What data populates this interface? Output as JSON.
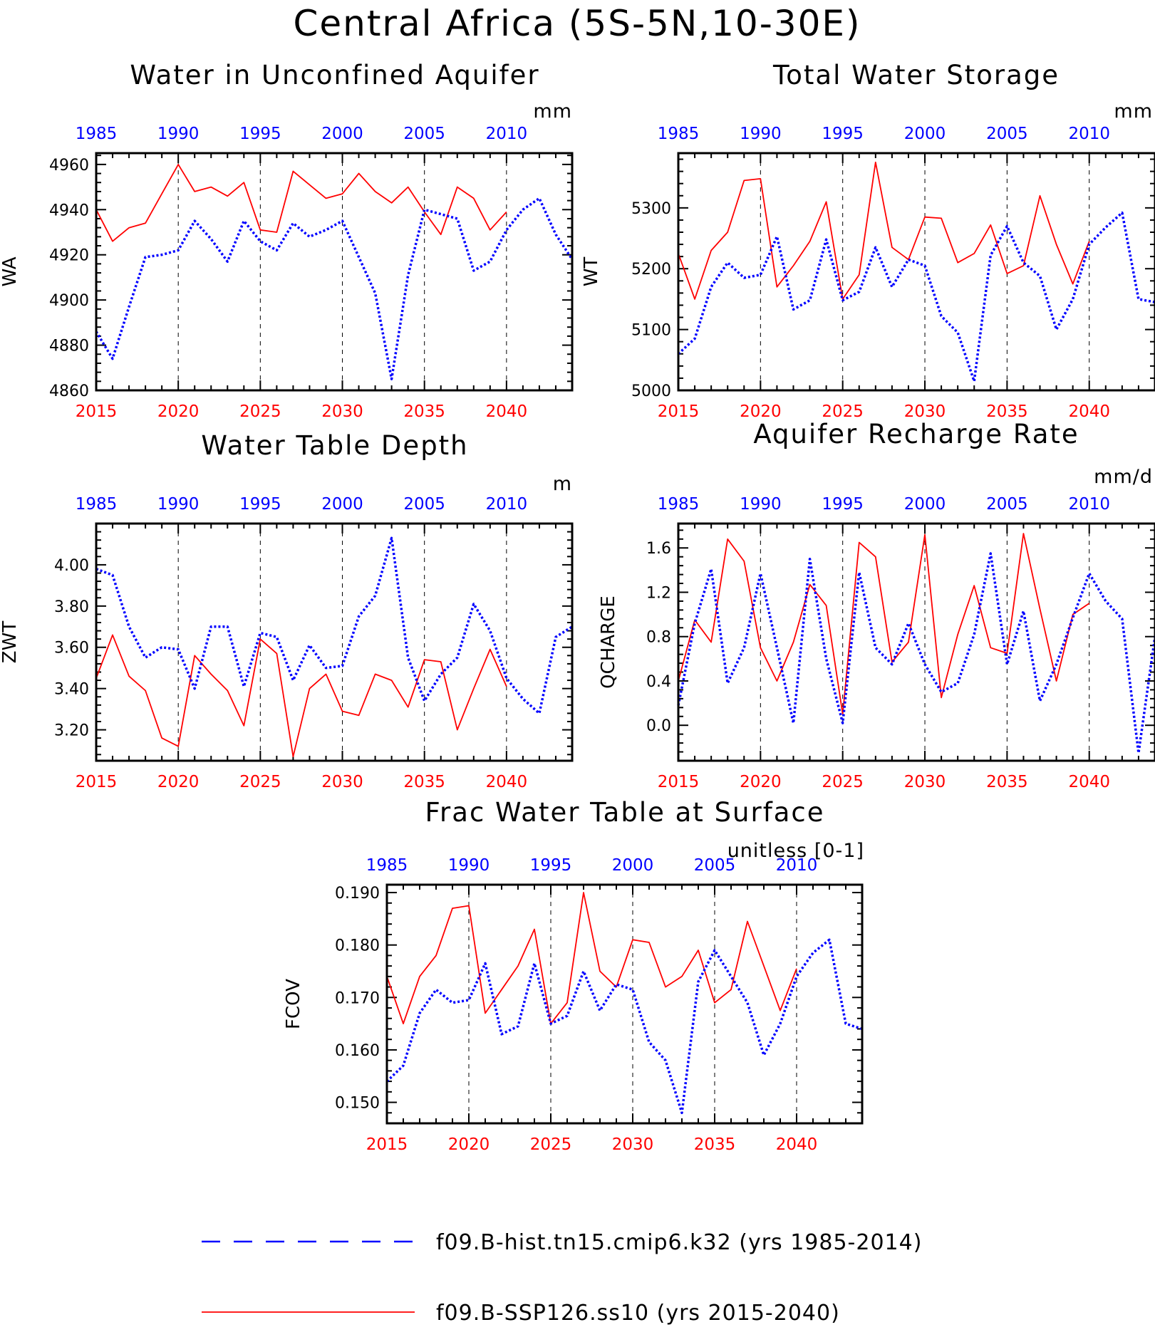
{
  "figure": {
    "title": "Central Africa (5S-5N,10-30E)"
  },
  "colors": {
    "hist": "#0000ff",
    "ssp": "#ff0000",
    "axis": "#000000",
    "grid": "#000000"
  },
  "legend": [
    {
      "series": "hist",
      "label": "f09.B-hist.tn15.cmip6.k32 (yrs 1985-2014)",
      "style": "dashed"
    },
    {
      "series": "ssp",
      "label": "f09.B-SSP126.ss10 (yrs 2015-2040)",
      "style": "solid"
    }
  ],
  "chart_data": [
    {
      "id": "wa",
      "type": "line",
      "title": "Water in Unconfined Aquifer",
      "units": "mm",
      "ylabel": "WA",
      "ylim": [
        4860,
        4965
      ],
      "yticks": [
        4860,
        4880,
        4900,
        4920,
        4940,
        4960
      ],
      "ytick_labels": [
        "4860",
        "4880",
        "4900",
        "4920",
        "4940",
        "4960"
      ],
      "xlim_bottom": [
        2015,
        2044
      ],
      "bottom_ticks": [
        2015,
        2020,
        2025,
        2030,
        2035,
        2040
      ],
      "top_offset": -30,
      "top_ticks": [
        1985,
        1990,
        1995,
        2000,
        2005,
        2010
      ],
      "grid_x": [
        2020,
        2025,
        2030,
        2035,
        2040
      ],
      "series": [
        {
          "key": "ssp",
          "x": [
            2015,
            2016,
            2017,
            2018,
            2019,
            2020,
            2021,
            2022,
            2023,
            2024,
            2025,
            2026,
            2027,
            2028,
            2029,
            2030,
            2031,
            2032,
            2033,
            2034,
            2035,
            2036,
            2037,
            2038,
            2039,
            2040
          ],
          "values": [
            4940,
            4926,
            4932,
            4934,
            4947,
            4960,
            4948,
            4950,
            4946,
            4952,
            4931,
            4930,
            4957,
            4951,
            4945,
            4947,
            4956,
            4948,
            4943,
            4950,
            4939,
            4929,
            4950,
            4945,
            4931,
            4939
          ]
        },
        {
          "key": "hist",
          "x": [
            1985,
            1986,
            1987,
            1988,
            1989,
            1990,
            1991,
            1992,
            1993,
            1994,
            1995,
            1996,
            1997,
            1998,
            1999,
            2000,
            2001,
            2002,
            2003,
            2004,
            2005,
            2006,
            2007,
            2008,
            2009,
            2010,
            2011,
            2012,
            2013,
            2014
          ],
          "values": [
            4886,
            4874,
            4897,
            4919,
            4920,
            4922,
            4935,
            4927,
            4917,
            4935,
            4926,
            4922,
            4934,
            4928,
            4931,
            4935,
            4919,
            4903,
            4865,
            4911,
            4940,
            4938,
            4936,
            4913,
            4917,
            4931,
            4940,
            4945,
            4929,
            4918
          ]
        }
      ]
    },
    {
      "id": "wt",
      "type": "line",
      "title": "Total Water Storage",
      "units": "mm",
      "ylabel": "WT",
      "ylim": [
        5000,
        5390
      ],
      "yticks": [
        5000,
        5100,
        5200,
        5300
      ],
      "ytick_labels": [
        "5000",
        "5100",
        "5200",
        "5300"
      ],
      "xlim_bottom": [
        2015,
        2044
      ],
      "bottom_ticks": [
        2015,
        2020,
        2025,
        2030,
        2035,
        2040
      ],
      "top_offset": -30,
      "top_ticks": [
        1985,
        1990,
        1995,
        2000,
        2005,
        2010
      ],
      "grid_x": [
        2020,
        2025,
        2030,
        2035,
        2040
      ],
      "series": [
        {
          "key": "ssp",
          "x": [
            2015,
            2016,
            2017,
            2018,
            2019,
            2020,
            2021,
            2022,
            2023,
            2024,
            2025,
            2026,
            2027,
            2028,
            2029,
            2030,
            2031,
            2032,
            2033,
            2034,
            2035,
            2036,
            2037,
            2038,
            2039,
            2040
          ],
          "values": [
            5225,
            5150,
            5230,
            5260,
            5345,
            5348,
            5170,
            5205,
            5245,
            5310,
            5150,
            5190,
            5375,
            5235,
            5215,
            5285,
            5283,
            5210,
            5225,
            5272,
            5192,
            5205,
            5320,
            5240,
            5175,
            5245
          ]
        },
        {
          "key": "hist",
          "x": [
            1985,
            1986,
            1987,
            1988,
            1989,
            1990,
            1991,
            1992,
            1993,
            1994,
            1995,
            1996,
            1997,
            1998,
            1999,
            2000,
            2001,
            2002,
            2003,
            2004,
            2005,
            2006,
            2007,
            2008,
            2009,
            2010,
            2011,
            2012,
            2013,
            2014
          ],
          "values": [
            5060,
            5085,
            5170,
            5210,
            5185,
            5190,
            5253,
            5133,
            5148,
            5248,
            5148,
            5162,
            5235,
            5170,
            5215,
            5205,
            5122,
            5095,
            5015,
            5222,
            5270,
            5210,
            5188,
            5100,
            5150,
            5240,
            5268,
            5292,
            5150,
            5145
          ]
        }
      ]
    },
    {
      "id": "zwt",
      "type": "line",
      "title": "Water Table Depth",
      "units": "m",
      "ylabel": "ZWT",
      "ylim": [
        3.05,
        4.2
      ],
      "yticks": [
        3.2,
        3.4,
        3.6,
        3.8,
        4.0
      ],
      "ytick_labels": [
        "3.20",
        "3.40",
        "3.60",
        "3.80",
        "4.00"
      ],
      "xlim_bottom": [
        2015,
        2044
      ],
      "bottom_ticks": [
        2015,
        2020,
        2025,
        2030,
        2035,
        2040
      ],
      "top_offset": -30,
      "top_ticks": [
        1985,
        1990,
        1995,
        2000,
        2005,
        2010
      ],
      "grid_x": [
        2020,
        2025,
        2030,
        2035,
        2040
      ],
      "series": [
        {
          "key": "ssp",
          "x": [
            2015,
            2016,
            2017,
            2018,
            2019,
            2020,
            2021,
            2022,
            2023,
            2024,
            2025,
            2026,
            2027,
            2028,
            2029,
            2030,
            2031,
            2032,
            2033,
            2034,
            2035,
            2036,
            2037,
            2038,
            2039,
            2040
          ],
          "values": [
            3.45,
            3.66,
            3.46,
            3.39,
            3.16,
            3.12,
            3.56,
            3.47,
            3.39,
            3.22,
            3.64,
            3.57,
            3.07,
            3.4,
            3.47,
            3.29,
            3.27,
            3.47,
            3.44,
            3.31,
            3.54,
            3.53,
            3.2,
            3.4,
            3.59,
            3.41
          ]
        },
        {
          "key": "hist",
          "x": [
            1985,
            1986,
            1987,
            1988,
            1989,
            1990,
            1991,
            1992,
            1993,
            1994,
            1995,
            1996,
            1997,
            1998,
            1999,
            2000,
            2001,
            2002,
            2003,
            2004,
            2005,
            2006,
            2007,
            2008,
            2009,
            2010,
            2011,
            2012,
            2013,
            2014
          ],
          "values": [
            3.98,
            3.95,
            3.7,
            3.55,
            3.6,
            3.59,
            3.4,
            3.7,
            3.7,
            3.41,
            3.67,
            3.65,
            3.44,
            3.61,
            3.5,
            3.51,
            3.75,
            3.85,
            4.13,
            3.55,
            3.34,
            3.47,
            3.55,
            3.81,
            3.68,
            3.45,
            3.35,
            3.28,
            3.65,
            3.7
          ]
        }
      ]
    },
    {
      "id": "qcharge",
      "type": "line",
      "title": "Aquifer Recharge Rate",
      "units": "mm/d",
      "ylabel": "QCHARGE",
      "ylim": [
        -0.32,
        1.82
      ],
      "yticks": [
        0.0,
        0.4,
        0.8,
        1.2,
        1.6
      ],
      "ytick_labels": [
        "0.0",
        "0.4",
        "0.8",
        "1.2",
        "1.6"
      ],
      "xlim_bottom": [
        2015,
        2044
      ],
      "bottom_ticks": [
        2015,
        2020,
        2025,
        2030,
        2035,
        2040
      ],
      "top_offset": -30,
      "top_ticks": [
        1985,
        1990,
        1995,
        2000,
        2005,
        2010
      ],
      "grid_x": [
        2020,
        2025,
        2030,
        2035,
        2040
      ],
      "series": [
        {
          "key": "ssp",
          "x": [
            2015,
            2016,
            2017,
            2018,
            2019,
            2020,
            2021,
            2022,
            2023,
            2024,
            2025,
            2026,
            2027,
            2028,
            2029,
            2030,
            2031,
            2032,
            2033,
            2034,
            2035,
            2036,
            2037,
            2038,
            2039,
            2040
          ],
          "values": [
            0.4,
            0.95,
            0.75,
            1.68,
            1.48,
            0.7,
            0.4,
            0.75,
            1.27,
            1.08,
            0.1,
            1.65,
            1.52,
            0.57,
            0.75,
            1.72,
            0.25,
            0.82,
            1.26,
            0.7,
            0.65,
            1.73,
            1.05,
            0.4,
            1.0,
            1.1
          ]
        },
        {
          "key": "hist",
          "x": [
            1985,
            1986,
            1987,
            1988,
            1989,
            1990,
            1991,
            1992,
            1993,
            1994,
            1995,
            1996,
            1997,
            1998,
            1999,
            2000,
            2001,
            2002,
            2003,
            2004,
            2005,
            2006,
            2007,
            2008,
            2009,
            2010,
            2011,
            2012,
            2013,
            2014
          ],
          "values": [
            0.18,
            0.92,
            1.41,
            0.38,
            0.7,
            1.37,
            0.7,
            0.02,
            1.5,
            0.6,
            0.02,
            1.38,
            0.7,
            0.55,
            0.92,
            0.55,
            0.3,
            0.38,
            0.82,
            1.55,
            0.55,
            1.03,
            0.22,
            0.55,
            0.97,
            1.37,
            1.12,
            0.96,
            -0.25,
            0.8
          ]
        }
      ]
    },
    {
      "id": "fcov",
      "type": "line",
      "title": "Frac Water Table at Surface",
      "units": "unitless [0-1]",
      "ylabel": "FCOV",
      "ylim": [
        0.146,
        0.1915
      ],
      "yticks": [
        0.15,
        0.16,
        0.17,
        0.18,
        0.19
      ],
      "ytick_labels": [
        "0.150",
        "0.160",
        "0.170",
        "0.180",
        "0.190"
      ],
      "xlim_bottom": [
        2015,
        2044
      ],
      "bottom_ticks": [
        2015,
        2020,
        2025,
        2030,
        2035,
        2040
      ],
      "top_offset": -30,
      "top_ticks": [
        1985,
        1990,
        1995,
        2000,
        2005,
        2010
      ],
      "grid_x": [
        2020,
        2025,
        2030,
        2035,
        2040
      ],
      "series": [
        {
          "key": "ssp",
          "x": [
            2015,
            2016,
            2017,
            2018,
            2019,
            2020,
            2021,
            2022,
            2023,
            2024,
            2025,
            2026,
            2027,
            2028,
            2029,
            2030,
            2031,
            2032,
            2033,
            2034,
            2035,
            2036,
            2037,
            2038,
            2039,
            2040
          ],
          "values": [
            0.174,
            0.165,
            0.174,
            0.178,
            0.187,
            0.1875,
            0.167,
            0.1715,
            0.176,
            0.183,
            0.165,
            0.169,
            0.19,
            0.175,
            0.172,
            0.181,
            0.1805,
            0.172,
            0.174,
            0.179,
            0.169,
            0.1715,
            0.1845,
            0.176,
            0.1675,
            0.1755
          ]
        },
        {
          "key": "hist",
          "x": [
            1985,
            1986,
            1987,
            1988,
            1989,
            1990,
            1991,
            1992,
            1993,
            1994,
            1995,
            1996,
            1997,
            1998,
            1999,
            2000,
            2001,
            2002,
            2003,
            2004,
            2005,
            2006,
            2007,
            2008,
            2009,
            2010,
            2011,
            2012,
            2013,
            2014
          ],
          "values": [
            0.154,
            0.157,
            0.167,
            0.1715,
            0.169,
            0.1695,
            0.1765,
            0.163,
            0.1645,
            0.1765,
            0.165,
            0.1665,
            0.175,
            0.1675,
            0.1725,
            0.1715,
            0.1615,
            0.158,
            0.148,
            0.173,
            0.179,
            0.174,
            0.169,
            0.159,
            0.165,
            0.174,
            0.1785,
            0.181,
            0.165,
            0.164
          ]
        }
      ]
    }
  ]
}
